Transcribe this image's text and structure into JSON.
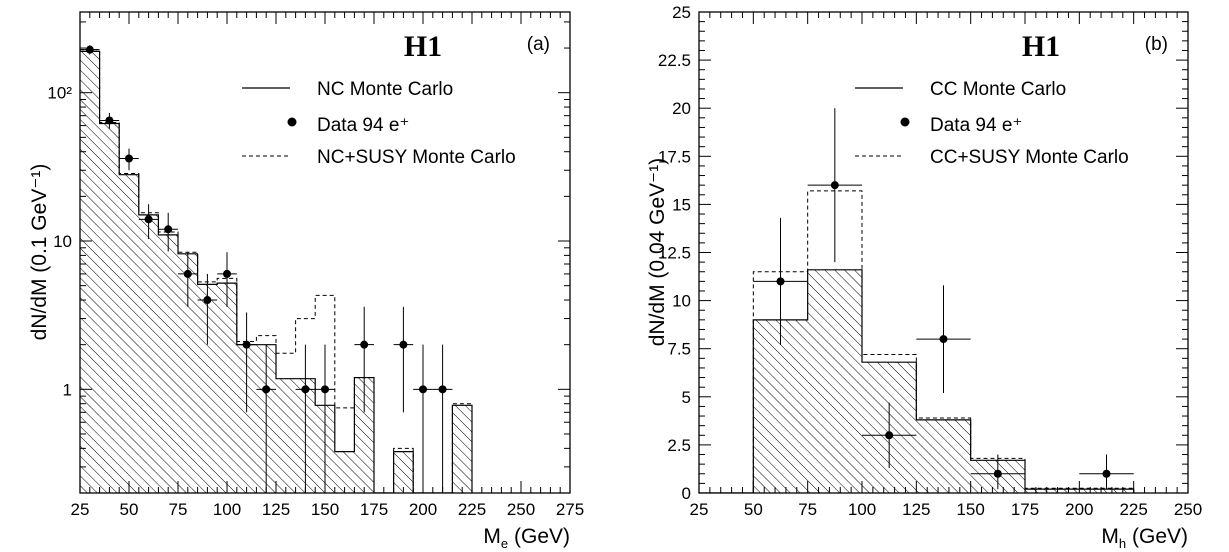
{
  "chart_data": [
    {
      "type": "histogram",
      "panel_label": "(a)",
      "experiment_label": "H1",
      "ylabel": "dN/dM  (0.1 GeV⁻¹)",
      "xlabel": "M",
      "xlabel_sub": "e",
      "xlabel_unit": " (GeV)",
      "xlim": [
        25,
        275
      ],
      "ylim": [
        0.2,
        350
      ],
      "yscale": "log",
      "x_ticks": [
        25,
        50,
        75,
        100,
        125,
        150,
        175,
        200,
        225,
        250,
        275
      ],
      "y_ticks": [
        1,
        10,
        100
      ],
      "y_tick_labels": [
        "1",
        "10",
        "10²"
      ],
      "legend": {
        "position": "top-right",
        "entries": [
          {
            "label": "NC Monte Carlo",
            "style": "solid"
          },
          {
            "label": "Data 94 e⁺",
            "style": "marker"
          },
          {
            "label": "NC+SUSY Monte Carlo",
            "style": "dashed"
          }
        ]
      },
      "series": [
        {
          "name": "NC Monte Carlo",
          "kind": "hatched-histogram",
          "bin_edges": [
            25,
            35,
            45,
            55,
            65,
            75,
            85,
            95,
            105,
            115,
            125,
            135,
            145,
            155,
            165,
            175,
            185,
            195,
            205,
            215,
            225
          ],
          "values": [
            190,
            62,
            28,
            15,
            11,
            8.2,
            5.1,
            5.2,
            2.0,
            2.0,
            1.18,
            1.18,
            0.78,
            0.38,
            1.2,
            0,
            0.38,
            0,
            0,
            0.78
          ]
        },
        {
          "name": "NC+SUSY Monte Carlo",
          "kind": "dashed-histogram",
          "bin_edges": [
            25,
            35,
            45,
            55,
            65,
            75,
            85,
            95,
            105,
            115,
            125,
            135,
            145,
            155,
            165,
            175,
            185,
            195,
            205,
            215,
            225
          ],
          "values": [
            195,
            63,
            28.5,
            15.5,
            11.5,
            8.4,
            5.3,
            5.6,
            2.1,
            2.3,
            1.75,
            3.0,
            4.3,
            0.75,
            1.2,
            0,
            0.4,
            0,
            0,
            0.8
          ]
        },
        {
          "name": "Data 94 e⁺",
          "kind": "points",
          "x": [
            30,
            40,
            50,
            60,
            70,
            80,
            90,
            100,
            110,
            120,
            140,
            150,
            170,
            190,
            200,
            210
          ],
          "y": [
            195,
            65,
            36,
            14,
            12,
            6,
            4,
            6,
            2,
            1,
            1,
            1,
            2,
            2,
            1,
            1
          ],
          "y_err_low": [
            14,
            8,
            6,
            3.7,
            3.5,
            2.4,
            2.0,
            2.4,
            1.3,
            0.9,
            0.9,
            0.9,
            1.3,
            1.3,
            0.9,
            0.9
          ],
          "y_err_high": [
            14,
            8,
            6,
            3.7,
            3.5,
            2.4,
            2.0,
            2.4,
            1.3,
            1.0,
            1.0,
            1.0,
            1.6,
            1.6,
            1.0,
            1.0
          ],
          "x_halfwidth": 5
        }
      ]
    },
    {
      "type": "histogram",
      "panel_label": "(b)",
      "experiment_label": "H1",
      "ylabel": "dN/dM  (0.04 GeV⁻¹)",
      "xlabel": "M",
      "xlabel_sub": "h",
      "xlabel_unit": " (GeV)",
      "xlim": [
        25,
        250
      ],
      "ylim": [
        0,
        25
      ],
      "yscale": "linear",
      "x_ticks": [
        25,
        50,
        75,
        100,
        125,
        150,
        175,
        200,
        225,
        250
      ],
      "y_ticks": [
        0,
        2.5,
        5,
        7.5,
        10,
        12.5,
        15,
        17.5,
        20,
        22.5,
        25
      ],
      "y_tick_labels": [
        "0",
        "2.5",
        "5",
        "7.5",
        "10",
        "12.5",
        "15",
        "17.5",
        "20",
        "22.5",
        "25"
      ],
      "legend": {
        "position": "top-right",
        "entries": [
          {
            "label": "CC Monte Carlo",
            "style": "solid"
          },
          {
            "label": "Data 94 e⁺",
            "style": "marker"
          },
          {
            "label": "CC+SUSY Monte Carlo",
            "style": "dashed"
          }
        ]
      },
      "series": [
        {
          "name": "CC Monte Carlo",
          "kind": "hatched-histogram",
          "bin_edges": [
            25,
            50,
            75,
            100,
            125,
            150,
            175,
            225
          ],
          "values": [
            0,
            9.0,
            11.6,
            6.8,
            3.8,
            1.7,
            0.2
          ]
        },
        {
          "name": "CC+SUSY Monte Carlo",
          "kind": "dashed-histogram",
          "bin_edges": [
            25,
            50,
            75,
            100,
            125,
            150,
            175,
            225
          ],
          "values": [
            0,
            11.5,
            15.7,
            7.2,
            3.9,
            1.8,
            0.25
          ]
        },
        {
          "name": "Data 94 e⁺",
          "kind": "points",
          "x": [
            62.5,
            87.5,
            112.5,
            137.5,
            162.5,
            212.5
          ],
          "y": [
            11,
            16,
            3,
            8,
            1,
            1
          ],
          "y_err_low": [
            3.3,
            4.0,
            1.7,
            2.8,
            0.8,
            0.8
          ],
          "y_err_high": [
            3.3,
            4.0,
            1.7,
            2.8,
            1.0,
            1.0
          ],
          "x_halfwidth": 12.5
        }
      ]
    }
  ]
}
